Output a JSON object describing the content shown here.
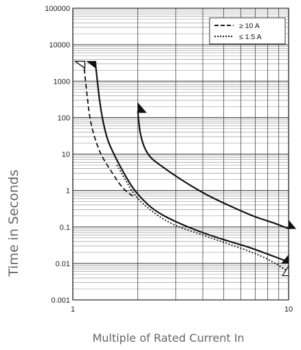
{
  "chart_data": {
    "type": "line",
    "title": "",
    "xlabel": "Multiple of Rated Current In",
    "ylabel": "Time in Seconds",
    "x_scale": "log",
    "y_scale": "log",
    "xlim": [
      1,
      10
    ],
    "ylim": [
      0.001,
      100000
    ],
    "grid": true,
    "legend_position": "top-right",
    "x_ticks": [
      {
        "value": 1,
        "label": "1"
      },
      {
        "value": 10,
        "label": "10"
      }
    ],
    "y_ticks": [
      {
        "value": 100000,
        "label": "100000"
      },
      {
        "value": 10000,
        "label": "10000"
      },
      {
        "value": 1000,
        "label": "1000"
      },
      {
        "value": 100,
        "label": "100"
      },
      {
        "value": 10,
        "label": "10"
      },
      {
        "value": 1,
        "label": "1"
      },
      {
        "value": 0.1,
        "label": "0.1"
      },
      {
        "value": 0.01,
        "label": "0.01"
      },
      {
        "value": 0.001,
        "label": "0.001"
      }
    ],
    "legend": [
      {
        "label": "≥ 10 A",
        "style": "dashed",
        "color": "#111111"
      },
      {
        "label": "≤ 1.5 A",
        "style": "dotted",
        "color": "#111111"
      }
    ],
    "series": [
      {
        "style": "solid",
        "x": [
          1.27,
          1.33,
          1.38,
          1.45,
          1.55,
          1.7,
          1.85,
          2.0,
          2.3,
          2.7,
          3.3,
          4.0,
          5.0,
          6.5,
          8.0,
          10.0
        ],
        "y": [
          3500,
          300,
          80,
          25,
          10,
          3.5,
          1.5,
          0.8,
          0.35,
          0.19,
          0.11,
          0.07,
          0.045,
          0.028,
          0.018,
          0.011
        ]
      },
      {
        "style": "dashed",
        "x": [
          1.12,
          1.16,
          1.2,
          1.26,
          1.35,
          1.5,
          1.7,
          1.9
        ],
        "y": [
          3500,
          500,
          100,
          30,
          10,
          3.5,
          1.2,
          0.7
        ]
      },
      {
        "style": "dotted",
        "x": [
          1.6,
          1.75,
          1.9,
          2.1,
          2.5,
          3.0,
          4.0,
          5.0,
          6.5,
          8.0,
          10.0
        ],
        "y": [
          5,
          2,
          0.9,
          0.45,
          0.2,
          0.11,
          0.06,
          0.038,
          0.022,
          0.013,
          0.006
        ]
      },
      {
        "style": "solid",
        "x": [
          2.0,
          2.05,
          2.15,
          2.3,
          2.6,
          3.0,
          3.5,
          4.3,
          5.5,
          7.0,
          8.5,
          10.0
        ],
        "y": [
          150,
          40,
          15,
          8,
          4.5,
          2.5,
          1.4,
          0.7,
          0.35,
          0.19,
          0.13,
          0.09
        ]
      }
    ]
  }
}
